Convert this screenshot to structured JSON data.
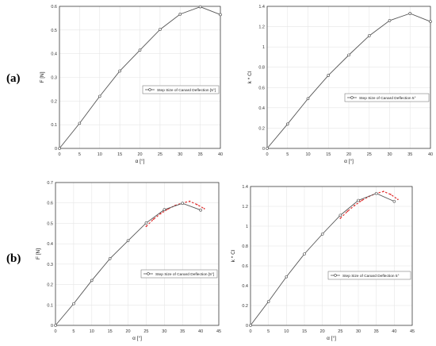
{
  "labels": {
    "a": "(a)",
    "b": "(b)"
  },
  "colors": {
    "series": "#555555",
    "dashed": "#e03030",
    "grid": "#e6e6e6",
    "axis": "#262626"
  },
  "chart_data": [
    {
      "id": "a-left",
      "type": "line",
      "xlabel": "α [°]",
      "ylabel": "F [N]",
      "xlim": [
        0,
        40
      ],
      "ylim": [
        0,
        0.6
      ],
      "xticks": [
        "0",
        "5",
        "10",
        "15",
        "20",
        "25",
        "30",
        "35",
        "40"
      ],
      "yticks": [
        "0",
        "0.1",
        "0.2",
        "0.3",
        "0.4",
        "0.5",
        "0.6"
      ],
      "legend": "Step Size of Canard Deflection [5°]",
      "grid": true,
      "series": [
        {
          "name": "Step Size of Canard Deflection [5°]",
          "x": [
            0,
            5,
            10,
            15,
            20,
            25,
            30,
            35,
            40
          ],
          "y": [
            0,
            0.106,
            0.22,
            0.327,
            0.415,
            0.502,
            0.567,
            0.598,
            0.565
          ]
        }
      ]
    },
    {
      "id": "a-right",
      "type": "line",
      "xlabel": "α [°]",
      "ylabel": "k * Cl",
      "xlim": [
        0,
        40
      ],
      "ylim": [
        0,
        1.4
      ],
      "xticks": [
        "0",
        "5",
        "10",
        "15",
        "20",
        "25",
        "30",
        "35",
        "40"
      ],
      "yticks": [
        "0",
        "0.2",
        "0.4",
        "0.6",
        "0.8",
        "1",
        "1.2",
        "1.4"
      ],
      "legend": "Step Size of Canard Deflection 5°",
      "grid": true,
      "series": [
        {
          "name": "Step Size of Canard Deflection 5°",
          "x": [
            0,
            5,
            10,
            15,
            20,
            25,
            30,
            35,
            40
          ],
          "y": [
            0,
            0.24,
            0.49,
            0.72,
            0.92,
            1.11,
            1.26,
            1.33,
            1.25
          ]
        }
      ]
    },
    {
      "id": "b-left",
      "type": "line",
      "xlabel": "α [°]",
      "ylabel": "F [N]",
      "xlim": [
        0,
        45
      ],
      "ylim": [
        0,
        0.7
      ],
      "xticks": [
        "0",
        "5",
        "10",
        "15",
        "20",
        "25",
        "30",
        "35",
        "40",
        "45"
      ],
      "yticks": [
        "0",
        "0.1",
        "0.2",
        "0.3",
        "0.4",
        "0.5",
        "0.6",
        "0.7"
      ],
      "legend": "Step Size of Canard Deflection [5°]",
      "grid": true,
      "series": [
        {
          "name": "Step Size of Canard Deflection [5°]",
          "x": [
            0,
            5,
            10,
            15,
            20,
            25,
            30,
            35,
            40
          ],
          "y": [
            0,
            0.106,
            0.22,
            0.327,
            0.415,
            0.502,
            0.567,
            0.598,
            0.565
          ]
        }
      ],
      "dashed": {
        "x": [
          25,
          27,
          29,
          31,
          33,
          35,
          37,
          39,
          41
        ],
        "y": [
          0.485,
          0.52,
          0.548,
          0.57,
          0.588,
          0.6,
          0.608,
          0.592,
          0.572
        ]
      }
    },
    {
      "id": "b-right",
      "type": "line",
      "xlabel": "α [°]",
      "ylabel": "k * Cl",
      "xlim": [
        0,
        45
      ],
      "ylim": [
        0,
        1.4
      ],
      "xticks": [
        "0",
        "5",
        "10",
        "15",
        "20",
        "25",
        "30",
        "35",
        "40",
        "45"
      ],
      "yticks": [
        "0",
        "0.2",
        "0.4",
        "0.6",
        "0.8",
        "1",
        "1.2",
        "1.4"
      ],
      "legend": "Step Size of Canard Deflection 5°",
      "grid": true,
      "series": [
        {
          "name": "Step Size of Canard Deflection 5°",
          "x": [
            0,
            5,
            10,
            15,
            20,
            25,
            30,
            35,
            40
          ],
          "y": [
            0,
            0.24,
            0.49,
            0.72,
            0.92,
            1.11,
            1.26,
            1.33,
            1.25
          ]
        }
      ],
      "dashed": {
        "x": [
          25,
          27,
          29,
          31,
          33,
          35,
          37,
          39,
          41
        ],
        "y": [
          1.08,
          1.15,
          1.21,
          1.26,
          1.3,
          1.33,
          1.35,
          1.32,
          1.27
        ]
      }
    }
  ]
}
